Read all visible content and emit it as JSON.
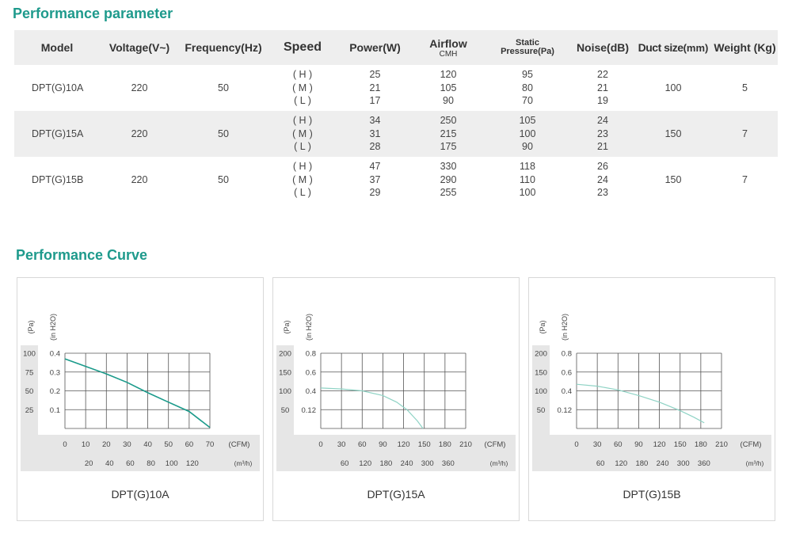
{
  "headings": {
    "params": "Performance parameter",
    "curve": "Performance Curve"
  },
  "table": {
    "headers": {
      "model": "Model",
      "voltage": "Voltage(V~)",
      "frequency": "Frequency(Hz)",
      "speed": "Speed",
      "power": "Power(W)",
      "airflow": "Airflow",
      "airflow_unit": "CMH",
      "static_1": "Static",
      "static_2": "Pressure(Pa)",
      "noise": "Noise(dB)",
      "duct": "Duct size",
      "duct_unit": "(mm)",
      "weight": "Weight (Kg)"
    },
    "rows": [
      {
        "model": "DPT(G)10A",
        "voltage": "220",
        "frequency": "50",
        "speeds": [
          "( H )",
          "( M )",
          "( L )"
        ],
        "power": [
          "25",
          "21",
          "17"
        ],
        "airflow": [
          "120",
          "105",
          "90"
        ],
        "pressure": [
          "95",
          "80",
          "70"
        ],
        "noise": [
          "22",
          "21",
          "19"
        ],
        "duct": "100",
        "weight": "5"
      },
      {
        "model": "DPT(G)15A",
        "voltage": "220",
        "frequency": "50",
        "speeds": [
          "( H )",
          "( M )",
          "( L )"
        ],
        "power": [
          "34",
          "31",
          "28"
        ],
        "airflow": [
          "250",
          "215",
          "175"
        ],
        "pressure": [
          "105",
          "100",
          "90"
        ],
        "noise": [
          "24",
          "23",
          "21"
        ],
        "duct": "150",
        "weight": "7"
      },
      {
        "model": "DPT(G)15B",
        "voltage": "220",
        "frequency": "50",
        "speeds": [
          "( H )",
          "( M )",
          "( L )"
        ],
        "power": [
          "47",
          "37",
          "29"
        ],
        "airflow": [
          "330",
          "290",
          "255"
        ],
        "pressure": [
          "118",
          "110",
          "100"
        ],
        "noise": [
          "26",
          "24",
          "23"
        ],
        "duct": "150",
        "weight": "7"
      }
    ]
  },
  "colors": {
    "accent": "#1e9a8c",
    "curve_a": "#1a9a8a",
    "curve_b": "#8fd3c5",
    "grid": "#555555",
    "band": "#e6e6e6"
  },
  "chart_data": [
    {
      "type": "line",
      "title": "DPT(G)10A",
      "y_pa_label": "(Pa)",
      "y_inh2o_label": "(in H2O)",
      "y_pa_ticks": [
        "100",
        "75",
        "50",
        "25"
      ],
      "y_in_ticks": [
        "0.4",
        "0.3",
        "0.2",
        "0.1"
      ],
      "ylim": [
        0,
        0.4
      ],
      "x_cfm_ticks": [
        "0",
        "10",
        "20",
        "30",
        "40",
        "50",
        "60",
        "70"
      ],
      "x_cfm_unit": "(CFM)",
      "x_m3h_ticks": [
        "20",
        "40",
        "60",
        "80",
        "100",
        "120"
      ],
      "x_m3h_unit": "(m³/h)",
      "xlim": [
        0,
        70
      ],
      "series": [
        {
          "x": [
            0,
            10,
            20,
            30,
            40,
            50,
            60,
            70
          ],
          "y": [
            0.37,
            0.33,
            0.29,
            0.245,
            0.19,
            0.14,
            0.09,
            0.005
          ]
        }
      ],
      "curve_color": "curve_a"
    },
    {
      "type": "line",
      "title": "DPT(G)15A",
      "y_pa_label": "(Pa)",
      "y_inh2o_label": "(in H2O)",
      "y_pa_ticks": [
        "200",
        "150",
        "100",
        "50"
      ],
      "y_in_ticks": [
        "0.8",
        "0.6",
        "0.4",
        "0.12"
      ],
      "ylim": [
        0,
        0.8
      ],
      "x_cfm_ticks": [
        "0",
        "30",
        "60",
        "90",
        "120",
        "150",
        "180",
        "210"
      ],
      "x_cfm_unit": "(CFM)",
      "x_m3h_ticks": [
        "60",
        "120",
        "180",
        "240",
        "300",
        "360"
      ],
      "x_m3h_unit": "(m³/h)",
      "xlim": [
        0,
        210
      ],
      "series": [
        {
          "x": [
            0,
            30,
            60,
            90,
            110,
            125,
            140,
            148
          ],
          "y": [
            0.43,
            0.42,
            0.4,
            0.35,
            0.28,
            0.2,
            0.08,
            0
          ]
        }
      ],
      "curve_color": "curve_b"
    },
    {
      "type": "line",
      "title": "DPT(G)15B",
      "y_pa_label": "(Pa)",
      "y_inh2o_label": "(in H2O)",
      "y_pa_ticks": [
        "200",
        "150",
        "100",
        "50"
      ],
      "y_in_ticks": [
        "0.8",
        "0.6",
        "0.4",
        "0.12"
      ],
      "ylim": [
        0,
        0.8
      ],
      "x_cfm_ticks": [
        "0",
        "30",
        "60",
        "90",
        "120",
        "150",
        "180",
        "210"
      ],
      "x_cfm_unit": "(CFM)",
      "x_m3h_ticks": [
        "60",
        "120",
        "180",
        "240",
        "300",
        "360"
      ],
      "x_m3h_unit": "(m³/h)",
      "xlim": [
        0,
        210
      ],
      "series": [
        {
          "x": [
            0,
            30,
            60,
            90,
            120,
            150,
            170,
            185
          ],
          "y": [
            0.47,
            0.45,
            0.41,
            0.35,
            0.28,
            0.19,
            0.12,
            0.06
          ]
        }
      ],
      "curve_color": "curve_b"
    }
  ]
}
